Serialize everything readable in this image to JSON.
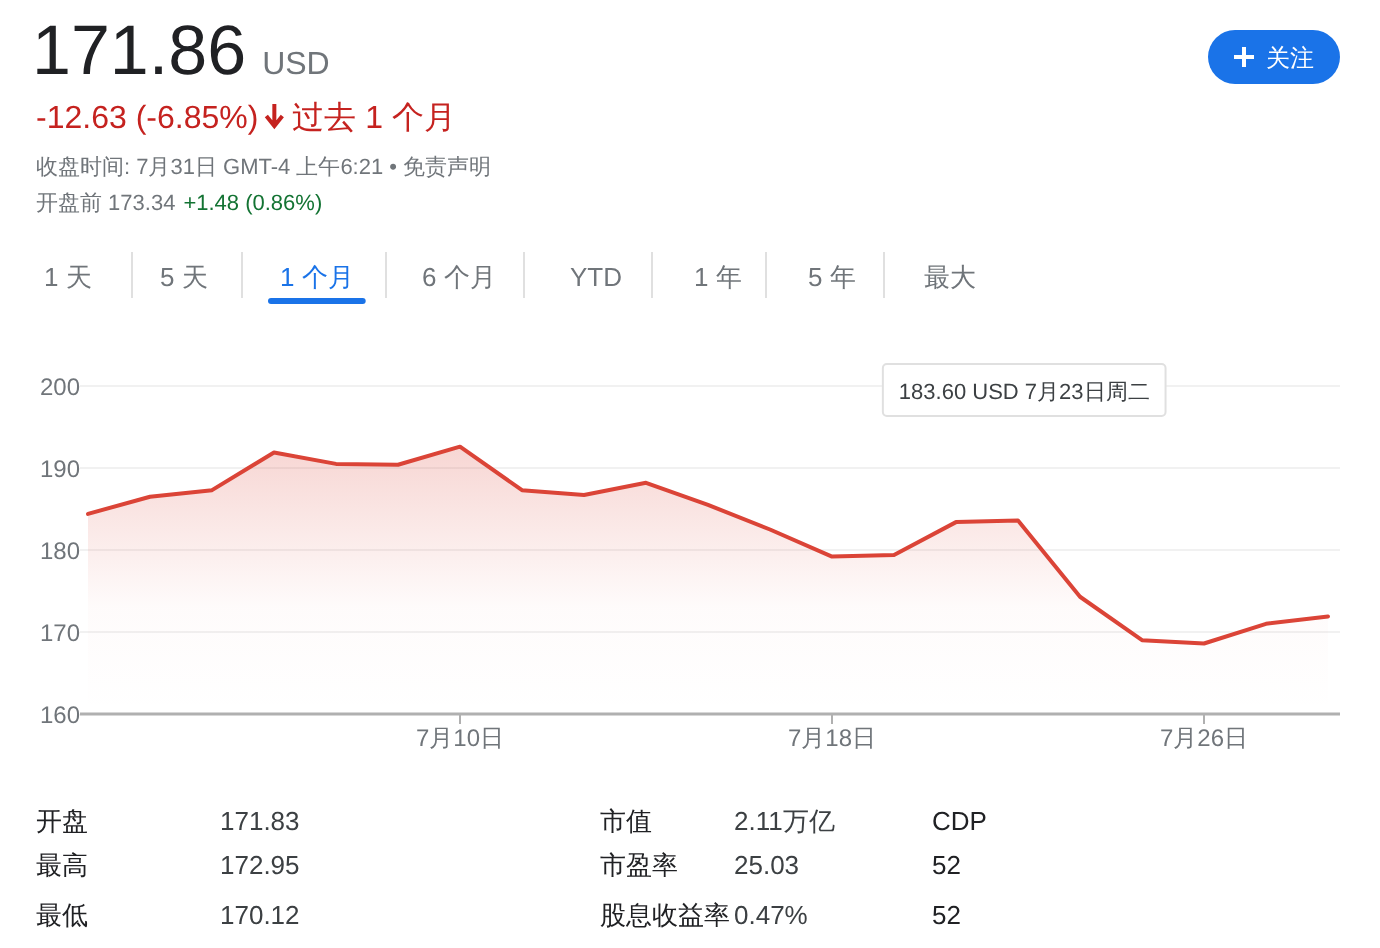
{
  "chart_data": [
    {
      "type": "other",
      "title": "171.86",
      "subtitle": "USD",
      "annotations": [
        "-12.63 (-6.85%)",
        "过去 1 个月",
        "收盘时间: 7月31日 GMT-4 上午6:21 • 免责声明",
        "开盘前 173.34",
        "+1.48 (0.86%)",
        "关注",
        "1 天",
        "5 天",
        "1 个月",
        "6 个月",
        "YTD",
        "1 年",
        "5 年",
        "最大"
      ]
    },
    {
      "type": "area",
      "categories": [
        null,
        null,
        null,
        null,
        null,
        null,
        "7月10日",
        null,
        null,
        null,
        null,
        null,
        "7月18日",
        null,
        null,
        null,
        null,
        null,
        "7月26日",
        null,
        null
      ],
      "series": [
        {
          "color": "#db4437",
          "values": [
            184.4,
            186.5,
            187.3,
            191.9,
            190.5,
            190.4,
            192.6,
            187.3,
            186.7,
            188.2,
            185.5,
            182.5,
            179.2,
            179.4,
            183.4,
            183.6,
            174.3,
            169.0,
            168.6,
            171.0,
            171.9
          ]
        }
      ],
      "ylim": [
        160,
        200
      ],
      "yticks": [
        160,
        170,
        180,
        190,
        200
      ],
      "grid": "y",
      "annotations": [
        "183.60 USD  7月23日周二"
      ]
    },
    {
      "type": "other",
      "annotations": [
        "开盘",
        "171.83",
        "市值",
        "2.11万亿",
        "CDP",
        "最高",
        "172.95",
        "市盈率",
        "25.03",
        "52",
        "最低",
        "170.12",
        "股息收益率",
        "0.47%",
        "52"
      ]
    }
  ]
}
